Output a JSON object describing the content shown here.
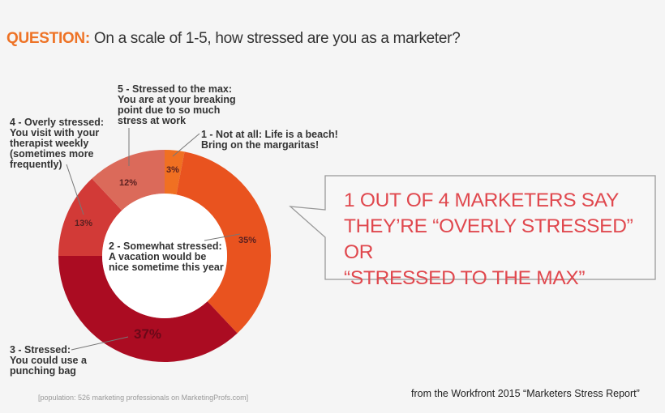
{
  "title": {
    "prefix": "QUESTION:",
    "text": " On a scale of 1-5, how stressed are you as a marketer?"
  },
  "chart_data": {
    "type": "pie",
    "donut": true,
    "categories": [
      "1 - Not at all",
      "2 - Somewhat stressed",
      "3 - Stressed",
      "4 - Overly stressed",
      "5 - Stressed to the max"
    ],
    "values": [
      3,
      35,
      37,
      13,
      12
    ],
    "value_labels": [
      "3%",
      "35%",
      "37%",
      "13%",
      "12%"
    ],
    "colors": [
      "#f07022",
      "#e9531f",
      "#ab0c22",
      "#d23a37",
      "#db6a5a"
    ],
    "labels": [
      {
        "head": "1 - Not at all: Life is a beach!",
        "body": "Bring on the margaritas!"
      },
      {
        "head": "2 - Somewhat stressed:",
        "body": "A vacation would be nice sometime this year"
      },
      {
        "head": "3 - Stressed:",
        "body": "You could use a punching bag"
      },
      {
        "head": "4 - Overly stressed:",
        "body": "You visit with your therapist weekly (sometimes more frequently)"
      },
      {
        "head": "5 - Stressed to the max:",
        "body": "You are at your breaking point due to so much stress at work"
      }
    ]
  },
  "callout": {
    "lines": [
      "1 OUT OF 4 MARKETERS SAY",
      "THEY’RE “OVERLY STRESSED” OR",
      "“STRESSED TO THE MAX”"
    ]
  },
  "footnote": "[population: 526 marketing professionals on MarketingProfs.com]",
  "source": "from the Workfront 2015 “Marketers Stress Report”"
}
